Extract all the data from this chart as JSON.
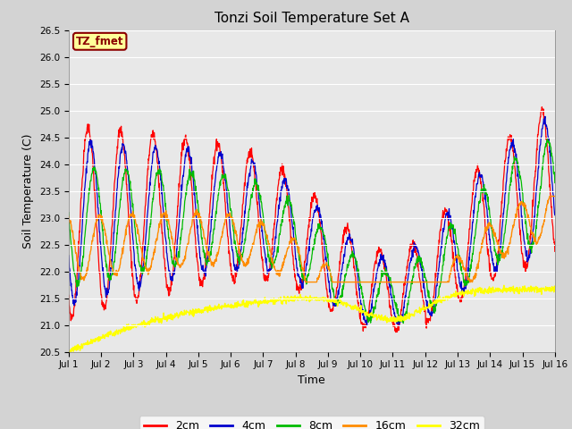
{
  "title": "Tonzi Soil Temperature Set A",
  "xlabel": "Time",
  "ylabel": "Soil Temperature (C)",
  "ylim": [
    20.5,
    26.5
  ],
  "xlim": [
    0,
    15
  ],
  "annotation_text": "TZ_fmet",
  "annotation_color": "#8B0000",
  "annotation_bg": "#FFFF99",
  "fig_bg_color": "#D3D3D3",
  "plot_bg": "#E8E8E8",
  "line_colors": {
    "2cm": "#FF0000",
    "4cm": "#0000CD",
    "8cm": "#00BB00",
    "16cm": "#FF8C00",
    "32cm": "#FFFF00"
  },
  "xtick_labels": [
    "Jul 1",
    "Jul 2",
    "Jul 3",
    "Jul 4",
    "Jul 5",
    "Jul 6",
    "Jul 7",
    "Jul 8",
    "Jul 9",
    "Jul 10",
    "Jul 11",
    "Jul 12",
    "Jul 13",
    "Jul 14",
    "Jul 15",
    "Jul 16"
  ],
  "ytick_vals": [
    20.5,
    21.0,
    21.5,
    22.0,
    22.5,
    23.0,
    23.5,
    24.0,
    24.5,
    25.0,
    25.5,
    26.0,
    26.5
  ],
  "n_points": 1500
}
